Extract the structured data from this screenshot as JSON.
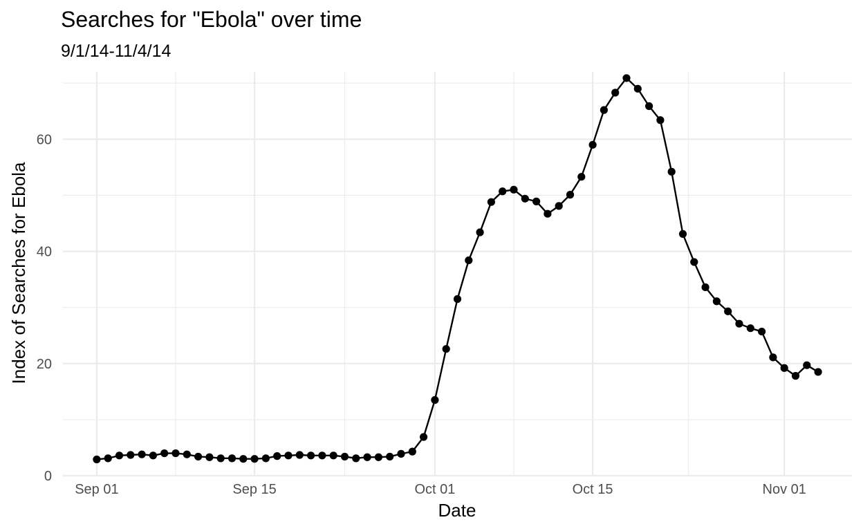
{
  "chart_data": {
    "type": "line",
    "title": "Searches for \"Ebola\" over time",
    "subtitle": "9/1/14-11/4/14",
    "xlabel": "Date",
    "ylabel": "Index of Searches for Ebola",
    "x_axis_type": "date",
    "xlim": [
      "2014-08-29",
      "2014-11-07"
    ],
    "ylim": [
      0,
      72
    ],
    "x_ticks": [
      {
        "date": "2014-09-01",
        "label": "Sep 01"
      },
      {
        "date": "2014-09-15",
        "label": "Sep 15"
      },
      {
        "date": "2014-10-01",
        "label": "Oct 01"
      },
      {
        "date": "2014-10-15",
        "label": "Oct 15"
      },
      {
        "date": "2014-11-01",
        "label": "Nov 01"
      }
    ],
    "y_ticks": [
      0,
      20,
      40,
      60
    ],
    "grid": true,
    "legend": "none",
    "show_points": true,
    "line_color": "#000000",
    "series": [
      {
        "x": [
          "2014-09-01",
          "2014-09-02",
          "2014-09-03",
          "2014-09-04",
          "2014-09-05",
          "2014-09-06",
          "2014-09-07",
          "2014-09-08",
          "2014-09-09",
          "2014-09-10",
          "2014-09-11",
          "2014-09-12",
          "2014-09-13",
          "2014-09-14",
          "2014-09-15",
          "2014-09-16",
          "2014-09-17",
          "2014-09-18",
          "2014-09-19",
          "2014-09-20",
          "2014-09-21",
          "2014-09-22",
          "2014-09-23",
          "2014-09-24",
          "2014-09-25",
          "2014-09-26",
          "2014-09-27",
          "2014-09-28",
          "2014-09-29",
          "2014-09-30",
          "2014-10-01",
          "2014-10-02",
          "2014-10-03",
          "2014-10-04",
          "2014-10-05",
          "2014-10-06",
          "2014-10-07",
          "2014-10-08",
          "2014-10-09",
          "2014-10-10",
          "2014-10-11",
          "2014-10-12",
          "2014-10-13",
          "2014-10-14",
          "2014-10-15",
          "2014-10-16",
          "2014-10-17",
          "2014-10-18",
          "2014-10-19",
          "2014-10-20",
          "2014-10-21",
          "2014-10-22",
          "2014-10-23",
          "2014-10-24",
          "2014-10-25",
          "2014-10-26",
          "2014-10-27",
          "2014-10-28",
          "2014-10-29",
          "2014-10-30",
          "2014-10-31",
          "2014-11-01",
          "2014-11-02",
          "2014-11-03",
          "2014-11-04"
        ],
        "values": [
          2.9,
          3.1,
          3.6,
          3.7,
          3.8,
          3.6,
          4.0,
          4.0,
          3.8,
          3.4,
          3.3,
          3.1,
          3.1,
          3.0,
          3.0,
          3.1,
          3.5,
          3.6,
          3.7,
          3.6,
          3.6,
          3.6,
          3.4,
          3.1,
          3.3,
          3.3,
          3.4,
          3.9,
          4.3,
          6.9,
          13.5,
          22.6,
          31.5,
          38.4,
          43.4,
          48.8,
          50.7,
          51.0,
          49.4,
          48.9,
          46.7,
          48.1,
          50.1,
          53.3,
          59.0,
          65.2,
          68.3,
          70.9,
          69.0,
          65.9,
          63.4,
          54.2,
          43.1,
          38.1,
          33.6,
          31.1,
          29.3,
          27.1,
          26.3,
          25.7,
          21.1,
          19.2,
          17.8,
          19.7,
          18.5
        ]
      }
    ]
  }
}
